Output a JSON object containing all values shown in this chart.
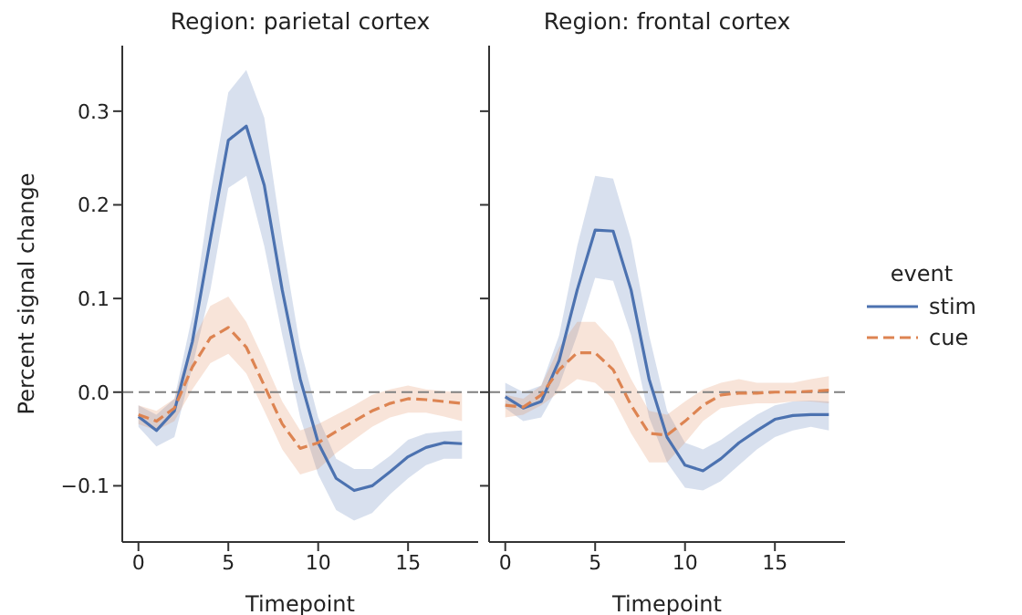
{
  "chart_data": [
    {
      "type": "line",
      "title": "Region: parietal cortex",
      "xlabel": "Timepoint",
      "ylabel": "Percent signal change",
      "x": [
        0,
        1,
        2,
        3,
        4,
        5,
        6,
        7,
        8,
        9,
        10,
        11,
        12,
        13,
        14,
        15,
        16,
        17,
        18
      ],
      "series": [
        {
          "color": "#4c72b0",
          "line_style": "solid",
          "values": [
            -0.026,
            -0.041,
            -0.02,
            0.054,
            0.163,
            0.269,
            0.284,
            0.221,
            0.109,
            0.014,
            -0.054,
            -0.092,
            -0.105,
            -0.1,
            -0.085,
            -0.069,
            -0.059,
            -0.054,
            -0.055
          ],
          "lower": [
            -0.037,
            -0.058,
            -0.048,
            0.027,
            0.109,
            0.218,
            0.231,
            0.156,
            0.061,
            -0.027,
            -0.088,
            -0.126,
            -0.137,
            -0.129,
            -0.109,
            -0.092,
            -0.078,
            -0.071,
            -0.071
          ],
          "upper": [
            -0.014,
            -0.024,
            -0.007,
            0.082,
            0.211,
            0.32,
            0.344,
            0.293,
            0.163,
            0.048,
            -0.027,
            -0.071,
            -0.082,
            -0.082,
            -0.068,
            -0.051,
            -0.044,
            -0.042,
            -0.041
          ]
        },
        {
          "color": "#dd8452",
          "line_style": "dashed",
          "values": [
            -0.024,
            -0.031,
            -0.017,
            0.027,
            0.058,
            0.069,
            0.048,
            0.007,
            -0.034,
            -0.06,
            -0.054,
            -0.042,
            -0.031,
            -0.02,
            -0.012,
            -0.007,
            -0.008,
            -0.01,
            -0.012
          ],
          "lower": [
            -0.034,
            -0.041,
            -0.031,
            0.003,
            0.031,
            0.041,
            0.02,
            -0.02,
            -0.061,
            -0.088,
            -0.082,
            -0.065,
            -0.051,
            -0.037,
            -0.027,
            -0.022,
            -0.022,
            -0.026,
            -0.031
          ],
          "upper": [
            -0.014,
            -0.02,
            -0.007,
            0.054,
            0.092,
            0.102,
            0.075,
            0.034,
            -0.01,
            -0.041,
            -0.034,
            -0.024,
            -0.014,
            -0.003,
            0.003,
            0.007,
            0.003,
            0.001,
            0
          ]
        }
      ],
      "xlim": [
        -0.9,
        18.9
      ],
      "xticks": [
        0,
        5,
        10,
        15
      ],
      "ylim": [
        -0.16,
        0.37
      ],
      "yticks": [
        {
          "value": -0.1,
          "label": "−0.1"
        },
        {
          "value": 0,
          "label": "0.0"
        },
        {
          "value": 0.1,
          "label": "0.1"
        },
        {
          "value": 0.2,
          "label": "0.2"
        },
        {
          "value": 0.3,
          "label": "0.3"
        }
      ],
      "ref_lines": [
        {
          "axis": "y",
          "value": 0,
          "color": "#808080",
          "line_style": "dashed"
        }
      ]
    },
    {
      "type": "line",
      "title": "Region: frontal cortex",
      "xlabel": "Timepoint",
      "legend_title": "event",
      "legend": "right",
      "tick_labels": "x",
      "x": [
        0,
        1,
        2,
        3,
        4,
        5,
        6,
        7,
        8,
        9,
        10,
        11,
        12,
        13,
        14,
        15,
        16,
        17,
        18
      ],
      "series": [
        {
          "name": "stim",
          "color": "#4c72b0",
          "line_style": "solid",
          "values": [
            -0.005,
            -0.017,
            -0.01,
            0.034,
            0.109,
            0.173,
            0.172,
            0.109,
            0.014,
            -0.048,
            -0.078,
            -0.084,
            -0.071,
            -0.054,
            -0.041,
            -0.029,
            -0.025,
            -0.024,
            -0.024
          ],
          "lower": [
            -0.017,
            -0.031,
            -0.027,
            0.007,
            0.061,
            0.122,
            0.119,
            0.061,
            -0.027,
            -0.075,
            -0.102,
            -0.105,
            -0.095,
            -0.078,
            -0.061,
            -0.048,
            -0.041,
            -0.037,
            -0.041
          ],
          "upper": [
            0.01,
            0,
            0.007,
            0.061,
            0.156,
            0.231,
            0.228,
            0.163,
            0.061,
            -0.02,
            -0.054,
            -0.061,
            -0.051,
            -0.037,
            -0.024,
            -0.014,
            -0.01,
            -0.009,
            -0.01
          ]
        },
        {
          "name": "cue",
          "color": "#dd8452",
          "line_style": "dashed",
          "values": [
            -0.014,
            -0.016,
            -0.003,
            0.024,
            0.042,
            0.042,
            0.024,
            -0.014,
            -0.044,
            -0.046,
            -0.031,
            -0.014,
            -0.003,
            -0.001,
            -0.001,
            0,
            0,
            0.001,
            0.002
          ],
          "lower": [
            -0.027,
            -0.024,
            -0.014,
            0,
            0.014,
            0.01,
            -0.007,
            -0.044,
            -0.075,
            -0.075,
            -0.054,
            -0.031,
            -0.017,
            -0.014,
            -0.012,
            -0.012,
            -0.01,
            -0.01,
            -0.012
          ],
          "upper": [
            -0.003,
            -0.007,
            0.007,
            0.048,
            0.075,
            0.075,
            0.054,
            0.014,
            -0.02,
            -0.024,
            -0.01,
            0.003,
            0.01,
            0.014,
            0.01,
            0.01,
            0.01,
            0.014,
            0.017
          ]
        }
      ],
      "xlim": [
        -0.9,
        18.9
      ],
      "xticks": [
        0,
        5,
        10,
        15
      ],
      "ylim": [
        -0.16,
        0.37
      ],
      "yticks": [
        -0.1,
        0.0,
        0.1,
        0.2,
        0.3
      ],
      "ref_lines": [
        {
          "axis": "y",
          "value": 0,
          "color": "#808080",
          "line_style": "dashed"
        }
      ]
    }
  ]
}
